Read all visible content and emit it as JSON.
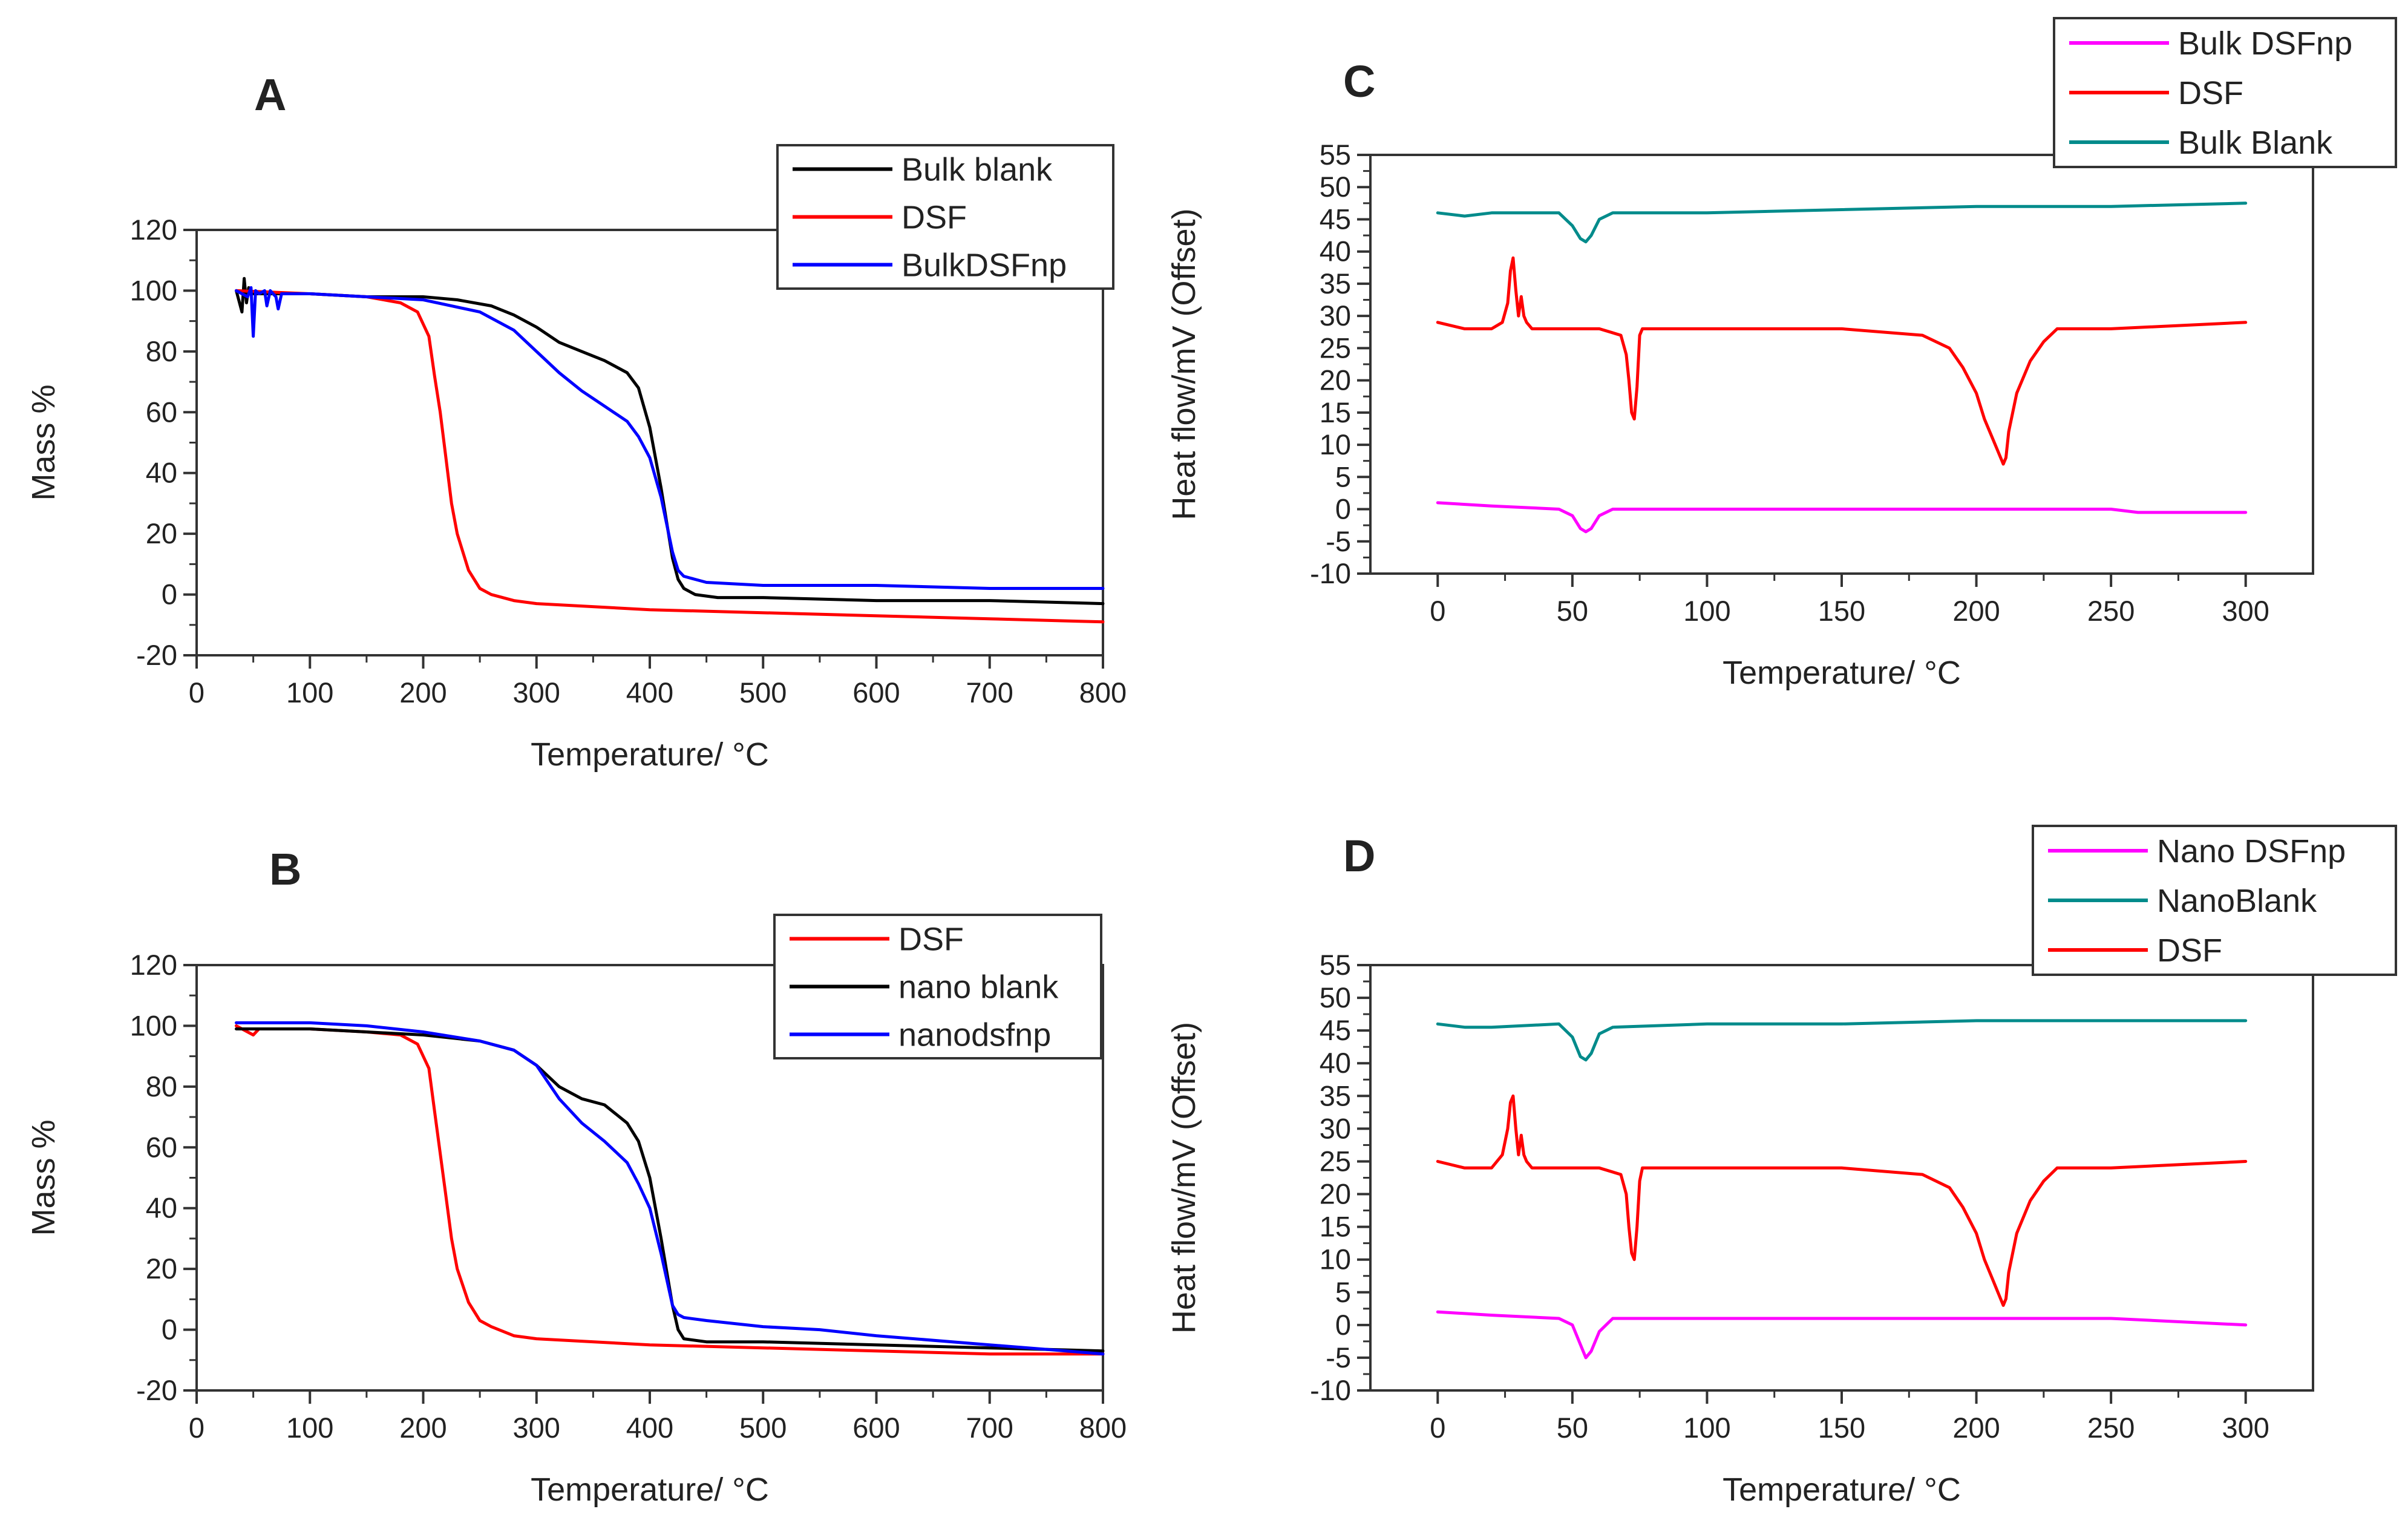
{
  "chart_data": [
    {
      "panel": "A",
      "type": "line",
      "title": "",
      "xlabel": "Temperature/ °C",
      "ylabel": "Mass %",
      "xlim": [
        0,
        800
      ],
      "ylim": [
        -20,
        120
      ],
      "xticks": [
        0,
        100,
        200,
        300,
        400,
        500,
        600,
        700,
        800
      ],
      "yticks": [
        -20,
        0,
        20,
        40,
        60,
        80,
        100,
        120
      ],
      "grid": false,
      "legend_position": "top-right",
      "series": [
        {
          "name": "Bulk blank",
          "color": "#000000",
          "x": [
            35,
            40,
            42,
            44,
            46,
            50,
            100,
            150,
            200,
            230,
            260,
            280,
            300,
            320,
            340,
            360,
            380,
            390,
            400,
            410,
            420,
            425,
            430,
            440,
            460,
            500,
            600,
            700,
            800
          ],
          "y": [
            100,
            93,
            104,
            96,
            101,
            99,
            99,
            98,
            98,
            97,
            95,
            92,
            88,
            83,
            80,
            77,
            73,
            68,
            55,
            35,
            12,
            5,
            2,
            0,
            -1,
            -1,
            -2,
            -2,
            -3
          ]
        },
        {
          "name": "DSF",
          "color": "#ff0000",
          "x": [
            35,
            100,
            150,
            180,
            195,
            205,
            210,
            215,
            220,
            225,
            230,
            240,
            250,
            260,
            280,
            300,
            400,
            500,
            600,
            700,
            800
          ],
          "y": [
            100,
            99,
            98,
            96,
            93,
            85,
            72,
            60,
            45,
            30,
            20,
            8,
            2,
            0,
            -2,
            -3,
            -5,
            -6,
            -7,
            -8,
            -9
          ]
        },
        {
          "name": "BulkDSFnp",
          "color": "#0000ff",
          "x": [
            35,
            45,
            48,
            50,
            52,
            55,
            60,
            62,
            65,
            70,
            72,
            75,
            80,
            100,
            150,
            200,
            250,
            280,
            300,
            320,
            340,
            360,
            380,
            390,
            400,
            410,
            420,
            425,
            430,
            440,
            450,
            500,
            600,
            700,
            800
          ],
          "y": [
            100,
            98,
            101,
            85,
            100,
            99,
            100,
            95,
            100,
            98,
            94,
            99,
            99,
            99,
            98,
            97,
            93,
            87,
            80,
            73,
            67,
            62,
            57,
            52,
            45,
            32,
            14,
            8,
            6,
            5,
            4,
            3,
            3,
            2,
            2
          ]
        }
      ]
    },
    {
      "panel": "B",
      "type": "line",
      "title": "",
      "xlabel": "Temperature/ °C",
      "ylabel": "Mass %",
      "xlim": [
        0,
        800
      ],
      "ylim": [
        -20,
        120
      ],
      "xticks": [
        0,
        100,
        200,
        300,
        400,
        500,
        600,
        700,
        800
      ],
      "yticks": [
        -20,
        0,
        20,
        40,
        60,
        80,
        100,
        120
      ],
      "grid": false,
      "legend_position": "top-right",
      "series": [
        {
          "name": "DSF",
          "color": "#ff0000",
          "x": [
            35,
            45,
            50,
            55,
            100,
            150,
            180,
            195,
            205,
            210,
            215,
            220,
            225,
            230,
            240,
            250,
            260,
            280,
            300,
            400,
            500,
            600,
            700,
            800
          ],
          "y": [
            100,
            98,
            97,
            99,
            99,
            98,
            97,
            94,
            86,
            72,
            58,
            44,
            30,
            20,
            9,
            3,
            1,
            -2,
            -3,
            -5,
            -6,
            -7,
            -8,
            -8
          ]
        },
        {
          "name": "nano blank",
          "color": "#000000",
          "x": [
            35,
            100,
            150,
            200,
            250,
            280,
            300,
            320,
            340,
            360,
            380,
            390,
            400,
            410,
            420,
            425,
            430,
            450,
            500,
            600,
            700,
            800
          ],
          "y": [
            99,
            99,
            98,
            97,
            95,
            92,
            87,
            80,
            76,
            74,
            68,
            62,
            50,
            30,
            8,
            0,
            -3,
            -4,
            -4,
            -5,
            -6,
            -7
          ]
        },
        {
          "name": "nanodsfnp",
          "color": "#0000ff",
          "x": [
            35,
            100,
            150,
            200,
            250,
            280,
            300,
            320,
            340,
            360,
            380,
            390,
            400,
            410,
            420,
            425,
            430,
            450,
            500,
            550,
            600,
            700,
            800
          ],
          "y": [
            101,
            101,
            100,
            98,
            95,
            92,
            87,
            76,
            68,
            62,
            55,
            48,
            40,
            25,
            8,
            5,
            4,
            3,
            1,
            0,
            -2,
            -5,
            -8
          ]
        }
      ]
    },
    {
      "panel": "C",
      "type": "line",
      "title": "",
      "xlabel": "Temperature/ °C",
      "ylabel": "Heat flow/mV (Offset)",
      "xlim": [
        -25,
        325
      ],
      "ylim": [
        -10,
        55
      ],
      "xticks": [
        0,
        50,
        100,
        150,
        200,
        250,
        300
      ],
      "yticks": [
        -10,
        -5,
        0,
        5,
        10,
        15,
        20,
        25,
        30,
        35,
        40,
        45,
        50,
        55
      ],
      "grid": false,
      "legend_position": "top-right",
      "series": [
        {
          "name": "Bulk DSFnp",
          "color": "#ff00ff",
          "x": [
            0,
            20,
            45,
            50,
            53,
            55,
            57,
            60,
            65,
            100,
            150,
            200,
            250,
            260,
            300
          ],
          "y": [
            1,
            0.5,
            0,
            -1,
            -3,
            -3.5,
            -3,
            -1,
            0,
            0,
            0,
            0,
            0,
            -0.5,
            -0.5
          ]
        },
        {
          "name": "DSF",
          "color": "#ff0000",
          "x": [
            0,
            10,
            20,
            24,
            26,
            27,
            28,
            29,
            30,
            31,
            32,
            33,
            35,
            40,
            60,
            68,
            70,
            71,
            72,
            73,
            74,
            75,
            76,
            100,
            150,
            180,
            190,
            195,
            200,
            203,
            206,
            208,
            210,
            211,
            212,
            215,
            220,
            225,
            230,
            250,
            300
          ],
          "y": [
            29,
            28,
            28,
            29,
            32,
            37,
            39,
            34,
            30,
            33,
            30,
            29,
            28,
            28,
            28,
            27,
            24,
            20,
            15,
            14,
            19,
            27,
            28,
            28,
            28,
            27,
            25,
            22,
            18,
            14,
            11,
            9,
            7,
            8,
            12,
            18,
            23,
            26,
            28,
            28,
            29
          ]
        },
        {
          "name": "Bulk Blank",
          "color": "#008b8b",
          "x": [
            0,
            10,
            20,
            45,
            50,
            53,
            55,
            57,
            60,
            65,
            100,
            150,
            200,
            250,
            300
          ],
          "y": [
            46,
            45.5,
            46,
            46,
            44,
            42,
            41.5,
            42.5,
            45,
            46,
            46,
            46.5,
            47,
            47,
            47.5
          ]
        }
      ]
    },
    {
      "panel": "D",
      "type": "line",
      "title": "",
      "xlabel": "Temperature/ °C",
      "ylabel": "Heat flow/mV (Offset)",
      "xlim": [
        -25,
        325
      ],
      "ylim": [
        -10,
        55
      ],
      "xticks": [
        0,
        50,
        100,
        150,
        200,
        250,
        300
      ],
      "yticks": [
        -10,
        -5,
        0,
        5,
        10,
        15,
        20,
        25,
        30,
        35,
        40,
        45,
        50,
        55
      ],
      "grid": false,
      "legend_position": "top-right",
      "series": [
        {
          "name": "Nano DSFnp",
          "color": "#ff00ff",
          "x": [
            0,
            20,
            45,
            50,
            53,
            55,
            57,
            60,
            65,
            100,
            150,
            200,
            250,
            300
          ],
          "y": [
            2,
            1.5,
            1,
            0,
            -3,
            -5,
            -4,
            -1,
            1,
            1,
            1,
            1,
            1,
            0
          ]
        },
        {
          "name": "NanoBlank",
          "color": "#008b8b",
          "x": [
            0,
            10,
            20,
            45,
            50,
            53,
            55,
            57,
            60,
            65,
            100,
            150,
            200,
            250,
            300
          ],
          "y": [
            46,
            45.5,
            45.5,
            46,
            44,
            41,
            40.5,
            41.5,
            44.5,
            45.5,
            46,
            46,
            46.5,
            46.5,
            46.5
          ]
        },
        {
          "name": "DSF",
          "color": "#ff0000",
          "x": [
            0,
            10,
            20,
            24,
            26,
            27,
            28,
            29,
            30,
            31,
            32,
            33,
            35,
            40,
            60,
            68,
            70,
            71,
            72,
            73,
            74,
            75,
            76,
            100,
            150,
            180,
            190,
            195,
            200,
            203,
            206,
            208,
            210,
            211,
            212,
            215,
            220,
            225,
            230,
            250,
            300
          ],
          "y": [
            25,
            24,
            24,
            26,
            30,
            34,
            35,
            30,
            26,
            29,
            26,
            25,
            24,
            24,
            24,
            23,
            20,
            15,
            11,
            10,
            15,
            22,
            24,
            24,
            24,
            23,
            21,
            18,
            14,
            10,
            7,
            5,
            3,
            4,
            8,
            14,
            19,
            22,
            24,
            24,
            25
          ]
        }
      ]
    }
  ]
}
